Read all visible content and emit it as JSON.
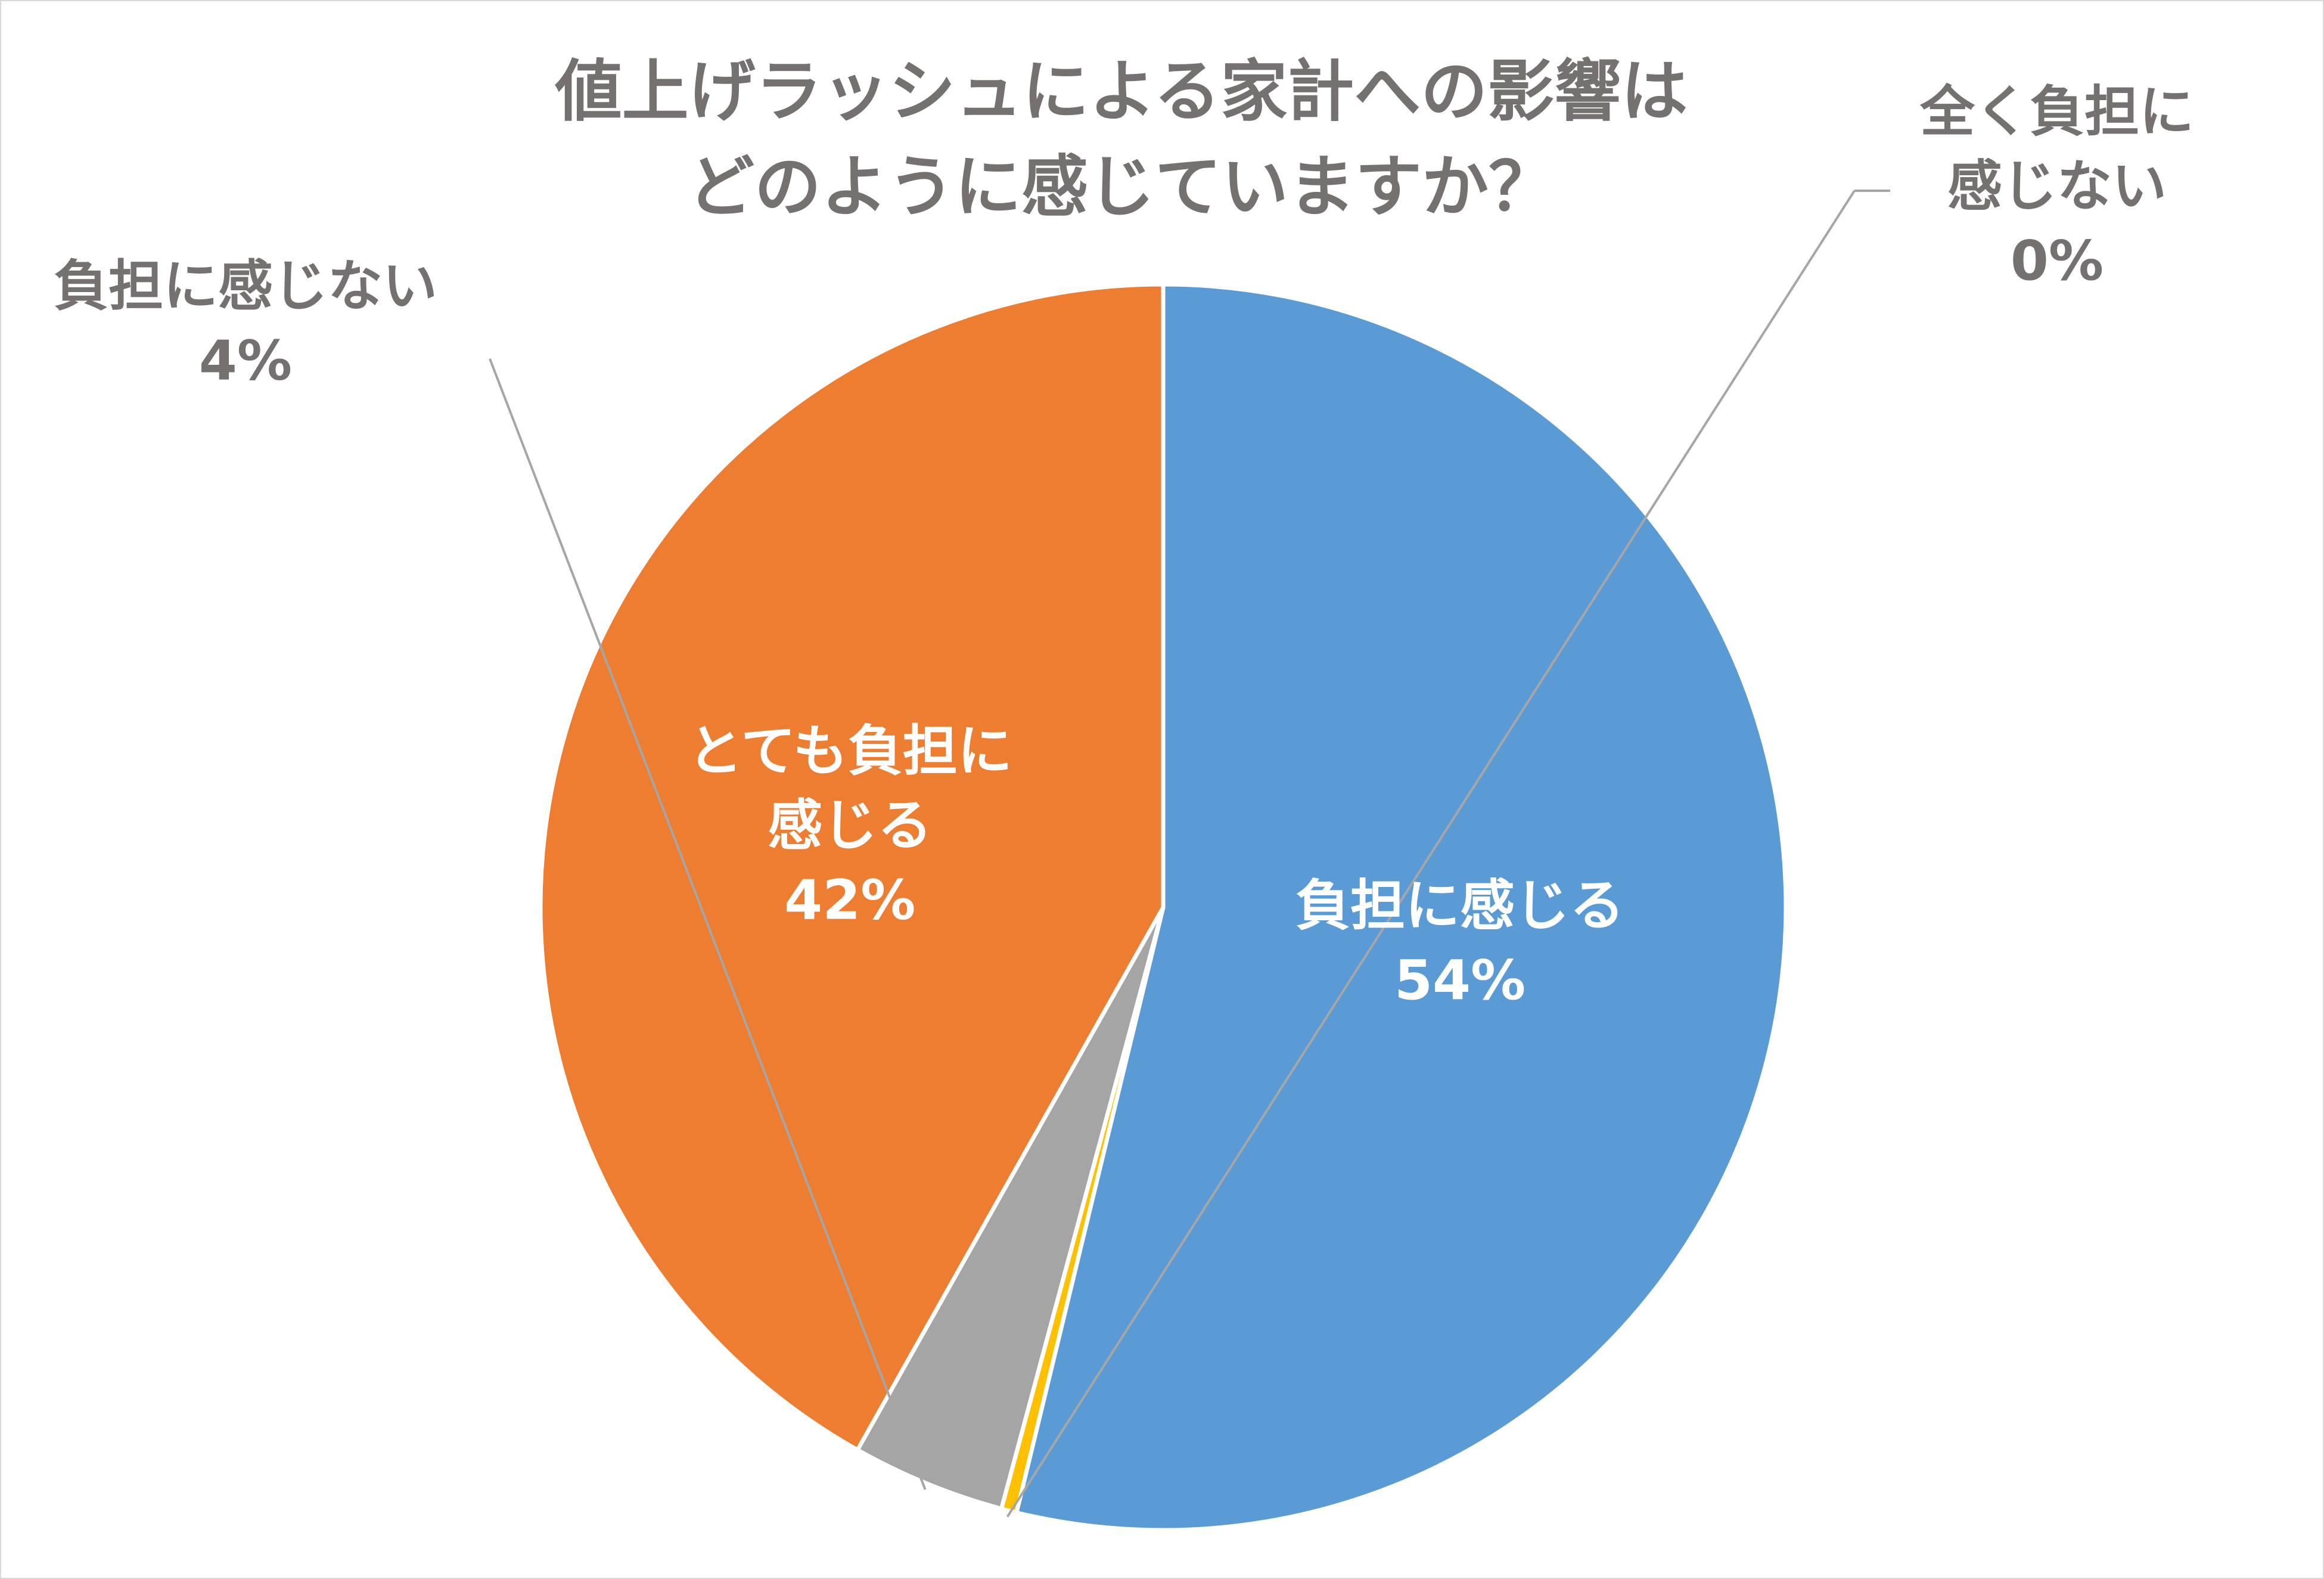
{
  "chart_data": {
    "type": "pie",
    "title_lines": [
      "値上げラッシュによる家計への影響は",
      "どのように感じていますか？"
    ],
    "slices": [
      {
        "label_lines": [
          "負担に感じる"
        ],
        "value": 54,
        "value_label": "54%",
        "color": "#5b9bd5",
        "label_color": "#ffffff"
      },
      {
        "label_lines": [
          "全く負担に",
          "感じない"
        ],
        "value": 0.4,
        "value_label": "0%",
        "color": "#ffc000",
        "label_color": "#767171"
      },
      {
        "label_lines": [
          "負担に感じない"
        ],
        "value": 4,
        "value_label": "4%",
        "color": "#a5a5a5",
        "label_color": "#767171"
      },
      {
        "label_lines": [
          "とても負担に",
          "感じる"
        ],
        "value": 42,
        "value_label": "42%",
        "color": "#ed7d31",
        "label_color": "#ffffff"
      }
    ],
    "title_color": "#767171",
    "leader_line_color": "#a6a6a6"
  }
}
